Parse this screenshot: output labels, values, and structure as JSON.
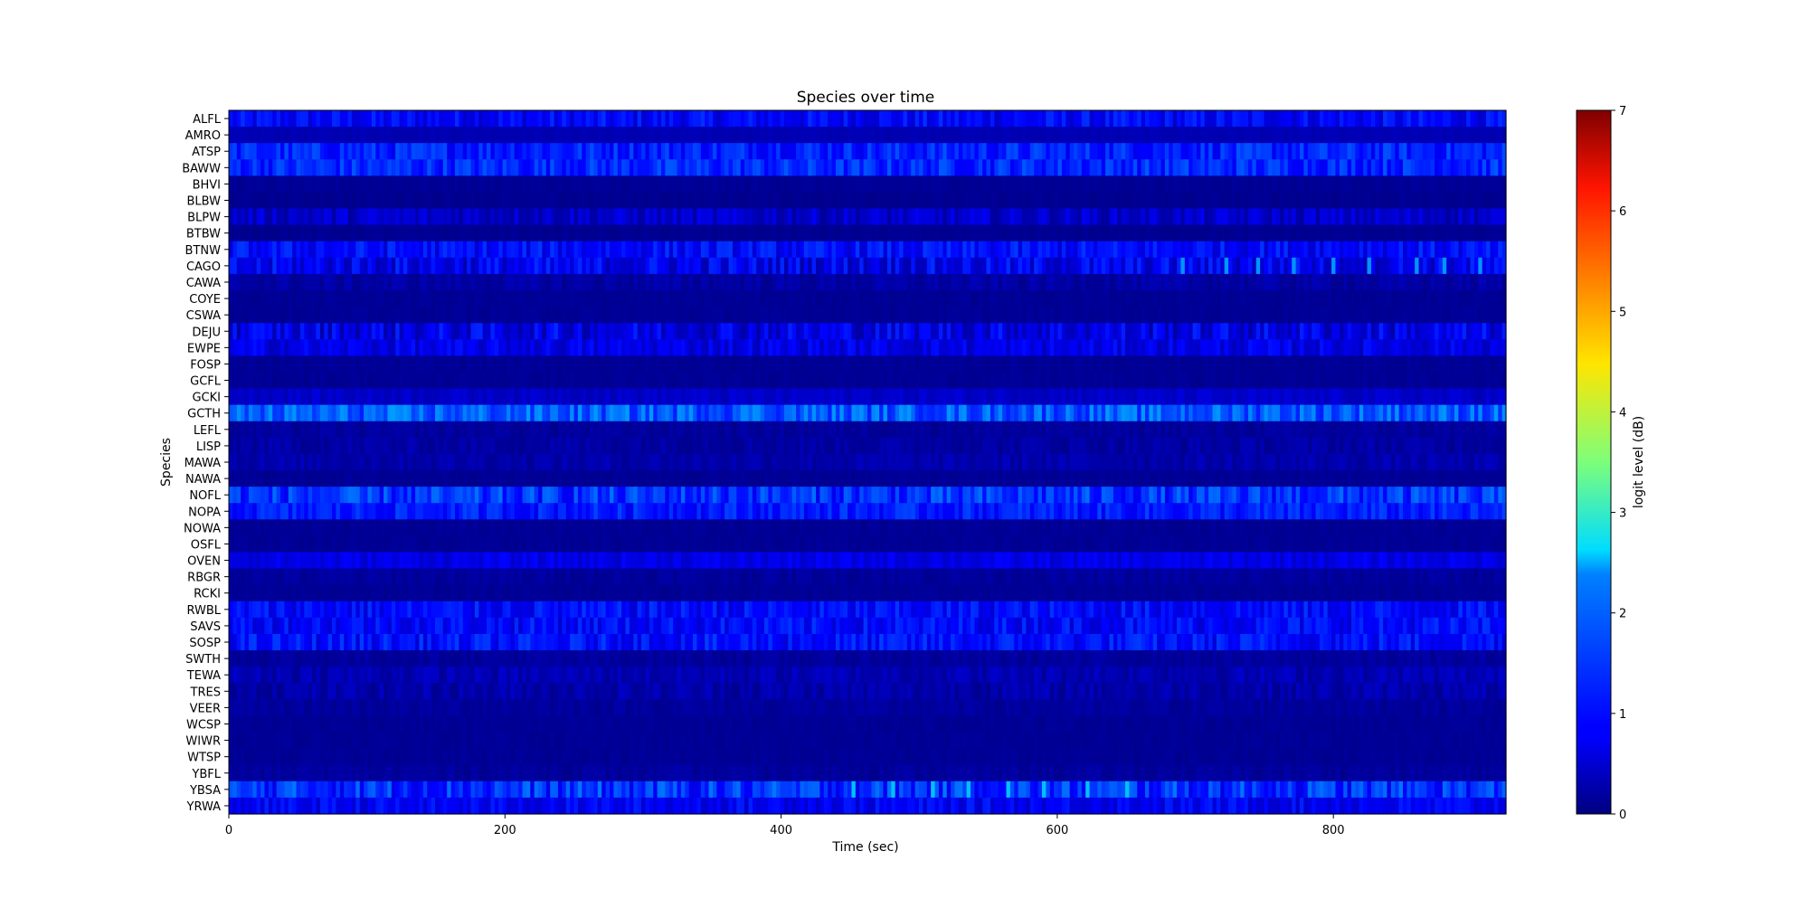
{
  "chart_data": {
    "type": "heatmap",
    "title": "Species over time",
    "xlabel": "Time (sec)",
    "ylabel": "Species",
    "xlim": [
      0,
      925
    ],
    "x_ticks": [
      0,
      200,
      400,
      600,
      800
    ],
    "colorbar": {
      "label": "logit level (dB)",
      "range": [
        0,
        7
      ],
      "ticks": [
        0,
        1,
        2,
        3,
        4,
        5,
        6,
        7
      ],
      "colormap": "jet"
    },
    "bins": 322,
    "species": [
      "ALFL",
      "AMRO",
      "ATSP",
      "BAWW",
      "BHVI",
      "BLBW",
      "BLPW",
      "BTBW",
      "BTNW",
      "CAGO",
      "CAWA",
      "COYE",
      "CSWA",
      "DEJU",
      "EWPE",
      "FOSP",
      "GCFL",
      "GCKI",
      "GCTH",
      "LEFL",
      "LISP",
      "MAWA",
      "NAWA",
      "NOFL",
      "NOPA",
      "NOWA",
      "OSFL",
      "OVEN",
      "RBGR",
      "RCKI",
      "RWBL",
      "SAVS",
      "SOSP",
      "SWTH",
      "TEWA",
      "TRES",
      "VEER",
      "WCSP",
      "WIWR",
      "WTSP",
      "YBFL",
      "YBSA",
      "YRWA"
    ],
    "base_levels": [
      0.85,
      0.35,
      1.1,
      1.15,
      0.15,
      0.12,
      0.5,
      0.12,
      0.9,
      0.75,
      0.25,
      0.15,
      0.15,
      0.7,
      0.7,
      0.15,
      0.15,
      0.5,
      1.5,
      0.2,
      0.25,
      0.3,
      0.15,
      1.2,
      1.05,
      0.15,
      0.15,
      0.7,
      0.2,
      0.15,
      0.9,
      0.9,
      0.95,
      0.2,
      0.35,
      0.3,
      0.2,
      0.15,
      0.15,
      0.15,
      0.2,
      1.2,
      0.8
    ],
    "variation": [
      0.35,
      0.05,
      0.35,
      0.35,
      0.05,
      0.05,
      0.3,
      0.05,
      0.35,
      0.45,
      0.15,
      0.05,
      0.05,
      0.45,
      0.3,
      0.05,
      0.05,
      0.15,
      0.45,
      0.1,
      0.15,
      0.15,
      0.05,
      0.45,
      0.3,
      0.05,
      0.05,
      0.2,
      0.1,
      0.05,
      0.35,
      0.35,
      0.35,
      0.1,
      0.2,
      0.2,
      0.1,
      0.05,
      0.05,
      0.05,
      0.1,
      0.5,
      0.3
    ],
    "highlights": [
      {
        "species": "CAGO",
        "times": [
          690,
          720,
          745,
          770,
          800,
          825,
          860,
          880,
          905
        ],
        "level": 1.9
      },
      {
        "species": "YBSA",
        "times": [
          450,
          480,
          508,
          535,
          562,
          590,
          620,
          650
        ],
        "level": 2.2
      },
      {
        "species": "GCTH",
        "times": [
          40,
          120,
          300,
          380,
          450,
          550,
          650,
          750,
          840,
          900
        ],
        "level": 1.85
      }
    ]
  }
}
